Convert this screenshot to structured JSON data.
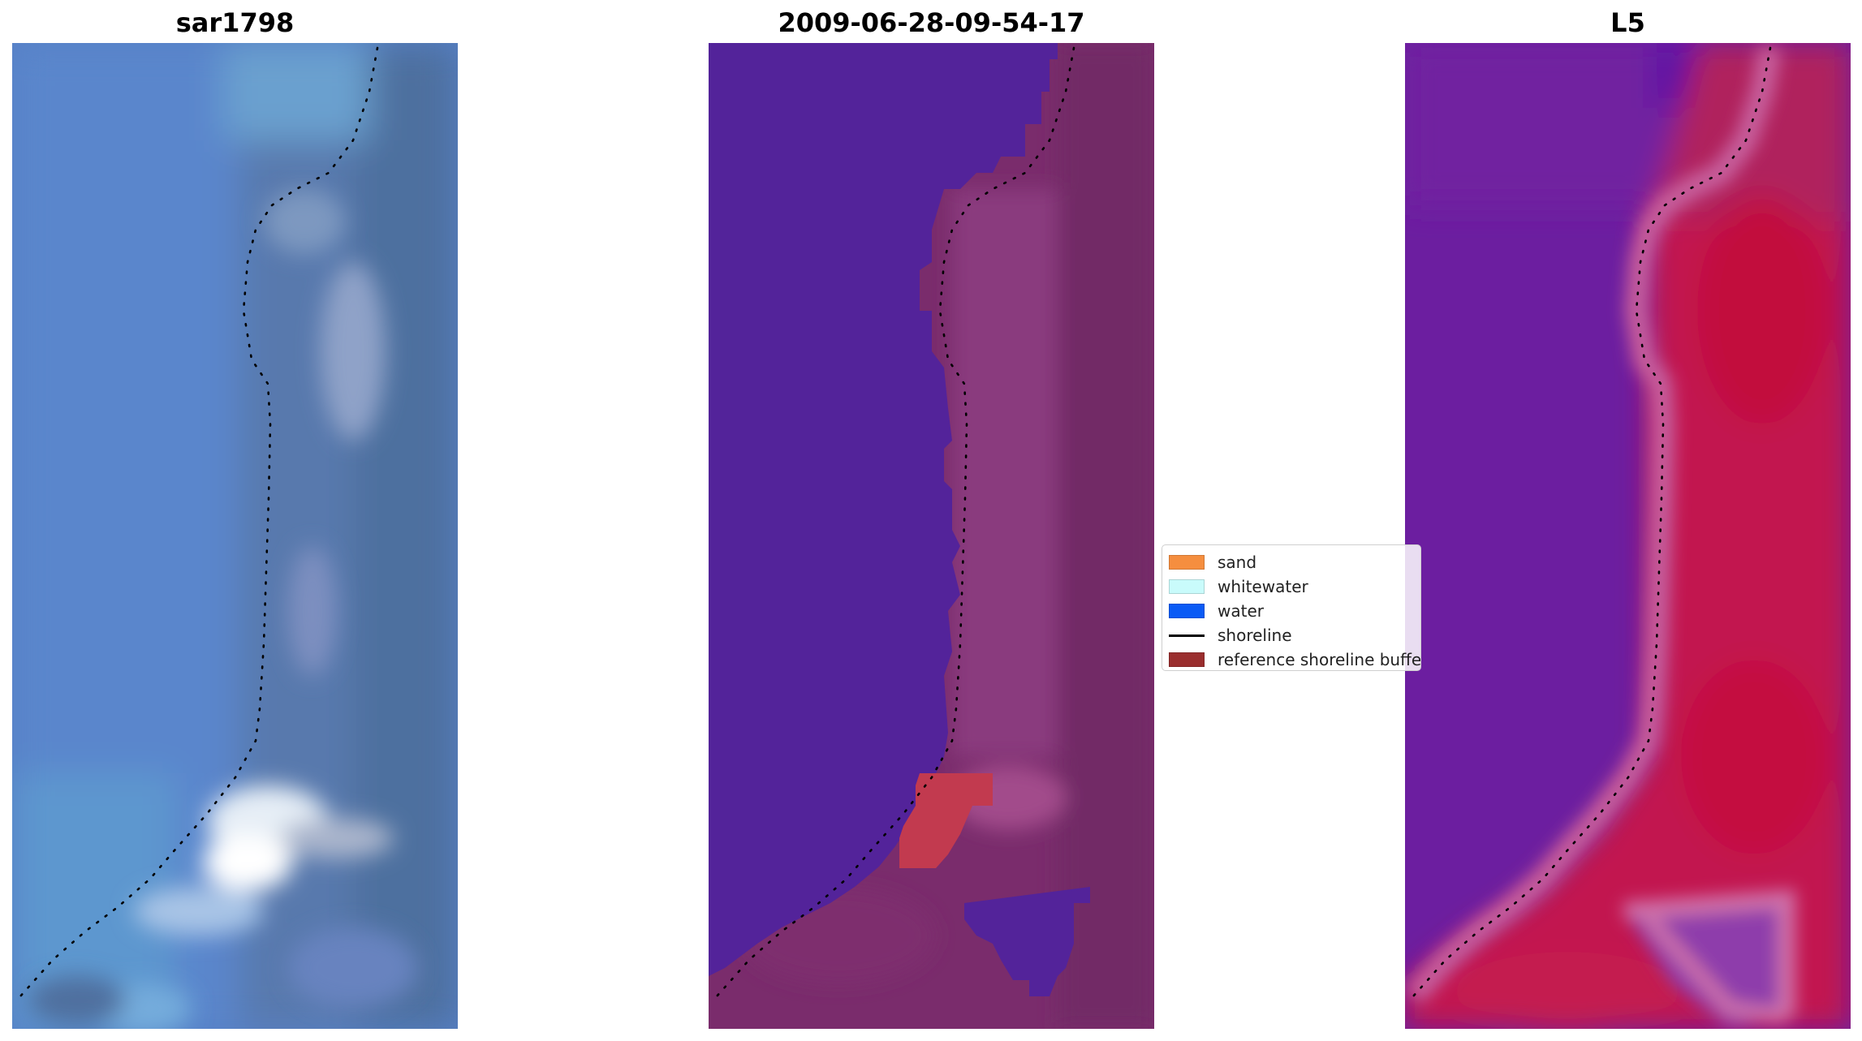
{
  "panels": [
    {
      "title": "sar1798"
    },
    {
      "title": "2009-06-28-09-54-17"
    },
    {
      "title": "L5"
    }
  ],
  "legend": {
    "items": [
      {
        "label": "sand",
        "color": "#f58e3f",
        "kind": "patch"
      },
      {
        "label": "whitewater",
        "color": "#c9fbfb",
        "kind": "patch"
      },
      {
        "label": "water",
        "color": "#0a5bf5",
        "kind": "patch"
      },
      {
        "label": "shoreline",
        "color": "#000000",
        "kind": "line"
      },
      {
        "label": "reference shoreline buffer",
        "color": "#9a2e2e",
        "kind": "patch"
      }
    ]
  },
  "colors": {
    "rgb_water": "#5886c8",
    "rgb_land": "#5a7eb0",
    "classified_water": "#53239a",
    "classified_land": "#7a2c6c",
    "classified_sand": "#c23a4f",
    "index_water": "#6c1ea0",
    "index_land": "#c4174f"
  }
}
